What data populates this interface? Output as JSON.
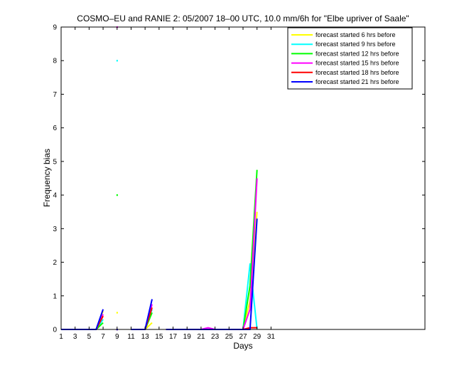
{
  "chart_data": {
    "type": "line",
    "title": "COSMO–EU and RANIE 2: 05/2007 18–00 UTC, 10.0 mm/6h for \"Elbe upriver of Saale\"",
    "xlabel": "Days",
    "ylabel": "Frequency bias",
    "xlim": [
      1,
      53
    ],
    "ylim": [
      0,
      9
    ],
    "xticks": [
      1,
      3,
      5,
      7,
      9,
      11,
      13,
      15,
      17,
      19,
      21,
      23,
      25,
      27,
      29,
      31
    ],
    "yticks": [
      0,
      1,
      2,
      3,
      4,
      5,
      6,
      7,
      8,
      9
    ],
    "grid": false,
    "legend_position": "top-right",
    "series": [
      {
        "name": "forecast started 6 hrs before",
        "color": "#ffff00",
        "x": [
          1,
          2,
          3,
          4,
          5,
          6,
          7,
          8,
          9,
          10,
          11,
          12,
          13,
          14,
          15,
          16,
          17,
          18,
          19,
          20,
          21,
          22,
          23,
          24,
          25,
          26,
          27,
          28,
          29
        ],
        "y": [
          0,
          0,
          0,
          0,
          0,
          0,
          0.55,
          null,
          0.5,
          null,
          0,
          0,
          0,
          0.2,
          null,
          0,
          0,
          0,
          0,
          0,
          0,
          0,
          0,
          0,
          0,
          0,
          0,
          0.85,
          3.5
        ]
      },
      {
        "name": "forecast started 9 hrs before",
        "color": "#00ffff",
        "x": [
          1,
          2,
          3,
          4,
          5,
          6,
          7,
          8,
          9,
          10,
          11,
          12,
          13,
          14,
          15,
          16,
          17,
          18,
          19,
          20,
          21,
          22,
          23,
          24,
          25,
          26,
          27,
          28,
          29
        ],
        "y": [
          0,
          0,
          0,
          0,
          0,
          0,
          0.3,
          null,
          8,
          null,
          0,
          0,
          0,
          0.6,
          null,
          0,
          0,
          0,
          0,
          0,
          0,
          0,
          0,
          0,
          0,
          0,
          0,
          1.95,
          0.02
        ]
      },
      {
        "name": "forecast started 12 hrs before",
        "color": "#00ff00",
        "x": [
          1,
          2,
          3,
          4,
          5,
          6,
          7,
          8,
          9,
          10,
          11,
          12,
          13,
          14,
          15,
          16,
          17,
          18,
          19,
          20,
          21,
          22,
          23,
          24,
          25,
          26,
          27,
          28,
          29
        ],
        "y": [
          0,
          0,
          0,
          0,
          0,
          0,
          0.2,
          null,
          4,
          null,
          0,
          0,
          0,
          0.5,
          null,
          0,
          0,
          0,
          0,
          0,
          0,
          0,
          0,
          0,
          0,
          0,
          0,
          1.3,
          4.75
        ]
      },
      {
        "name": "forecast started 15 hrs before",
        "color": "#ff00ff",
        "x": [
          1,
          2,
          3,
          4,
          5,
          6,
          7,
          8,
          9,
          10,
          11,
          12,
          13,
          14,
          15,
          16,
          17,
          18,
          19,
          20,
          21,
          22,
          23,
          24,
          25,
          26,
          27,
          28,
          29
        ],
        "y": [
          0,
          0,
          0,
          0,
          0,
          0,
          0.45,
          null,
          9,
          null,
          0,
          0,
          0,
          0.75,
          null,
          0,
          0,
          0,
          0,
          0,
          0,
          0.05,
          0,
          0,
          0,
          0,
          0,
          0.6,
          4.5
        ]
      },
      {
        "name": "forecast started 18 hrs before",
        "color": "#ff0000",
        "x": [
          1,
          2,
          3,
          4,
          5,
          6,
          7,
          8,
          9,
          10,
          11,
          12,
          13,
          14,
          15,
          16,
          17,
          18,
          19,
          20,
          21,
          22,
          23,
          24,
          25,
          26,
          27,
          28,
          29
        ],
        "y": [
          0,
          0,
          0,
          0,
          0,
          0,
          0.4,
          null,
          0,
          null,
          0,
          0,
          0,
          0.65,
          null,
          0,
          0,
          0,
          0,
          0,
          0,
          0,
          0,
          0,
          0,
          0,
          0,
          0.05,
          0.05
        ]
      },
      {
        "name": "forecast started 21 hrs before",
        "color": "#0000ff",
        "x": [
          1,
          2,
          3,
          4,
          5,
          6,
          7,
          8,
          9,
          10,
          11,
          12,
          13,
          14,
          15,
          16,
          17,
          18,
          19,
          20,
          21,
          22,
          23,
          24,
          25,
          26,
          27,
          28,
          29
        ],
        "y": [
          0,
          0,
          0,
          0,
          0,
          0,
          0.6,
          null,
          0,
          null,
          0,
          0,
          0,
          0.9,
          null,
          0,
          0,
          0,
          0,
          0,
          0,
          0,
          0,
          0,
          0,
          0,
          0,
          0,
          3.3
        ]
      }
    ]
  }
}
